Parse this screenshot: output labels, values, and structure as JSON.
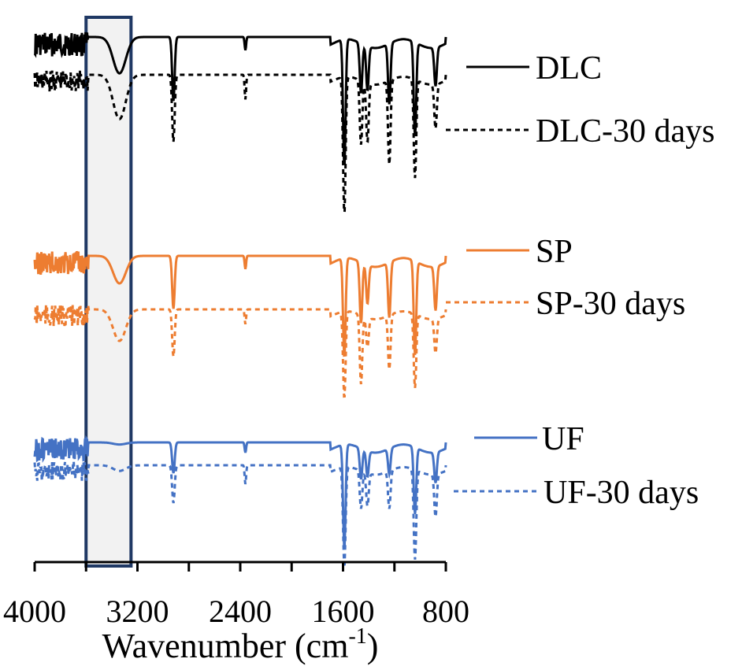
{
  "chart_data": {
    "type": "line",
    "xlabel": "Wavenumber (cm",
    "xlabel_sup": "-1",
    "xlabel_suffix": ")",
    "xlim": [
      4000,
      800
    ],
    "x_reversed": true,
    "x_ticks": [
      4000,
      3200,
      2400,
      1600,
      800
    ],
    "y_axis_shown": false,
    "grid": false,
    "highlight_band": {
      "x_from": 3600,
      "x_to": 3250,
      "label": ""
    },
    "legend_placement": "right of each trace",
    "series": [
      {
        "name": "DLC",
        "color": "#000000",
        "dash": "solid",
        "group": 0,
        "variant": 0
      },
      {
        "name": "DLC-30 days",
        "color": "#000000",
        "dash": "dashed",
        "group": 0,
        "variant": 1
      },
      {
        "name": "SP",
        "color": "#ED7D31",
        "dash": "solid",
        "group": 1,
        "variant": 0
      },
      {
        "name": "SP-30 days",
        "color": "#ED7D31",
        "dash": "dashed",
        "group": 1,
        "variant": 1
      },
      {
        "name": "UF",
        "color": "#4472C4",
        "dash": "solid",
        "group": 2,
        "variant": 0
      },
      {
        "name": "UF-30 days",
        "color": "#4472C4",
        "dash": "dashed",
        "group": 2,
        "variant": 1
      }
    ],
    "peaks": [
      {
        "x": 3340,
        "depth": [
          0.33,
          0.45,
          0.25,
          0.32,
          0.02,
          0.06
        ]
      },
      {
        "x": 2920,
        "depth": [
          0.58,
          0.68,
          0.48,
          0.48,
          0.3,
          0.4
        ]
      },
      {
        "x": 2360,
        "depth": [
          0.12,
          0.25,
          0.12,
          0.15,
          0.1,
          0.2
        ]
      },
      {
        "x": 1590,
        "depth": [
          1.15,
          1.4,
          0.9,
          0.88,
          1.0,
          1.05
        ]
      },
      {
        "x": 1460,
        "depth": [
          0.45,
          0.65,
          0.55,
          0.7,
          0.3,
          0.4
        ]
      },
      {
        "x": 1410,
        "depth": [
          0.4,
          0.6,
          0.35,
          0.3,
          0.25,
          0.35
        ]
      },
      {
        "x": 1240,
        "depth": [
          0.55,
          0.85,
          0.5,
          0.55,
          0.25,
          0.4
        ]
      },
      {
        "x": 1040,
        "depth": [
          0.85,
          1.0,
          0.85,
          0.75,
          0.65,
          0.95
        ]
      },
      {
        "x": 880,
        "depth": [
          0.35,
          0.45,
          0.4,
          0.35,
          0.3,
          0.45
        ]
      }
    ]
  },
  "legend": {
    "dlc": "DLC",
    "dlc_30": "DLC-30 days",
    "sp": "SP",
    "sp_30": "SP-30 days",
    "uf": "UF",
    "uf_30": "UF-30 days"
  }
}
